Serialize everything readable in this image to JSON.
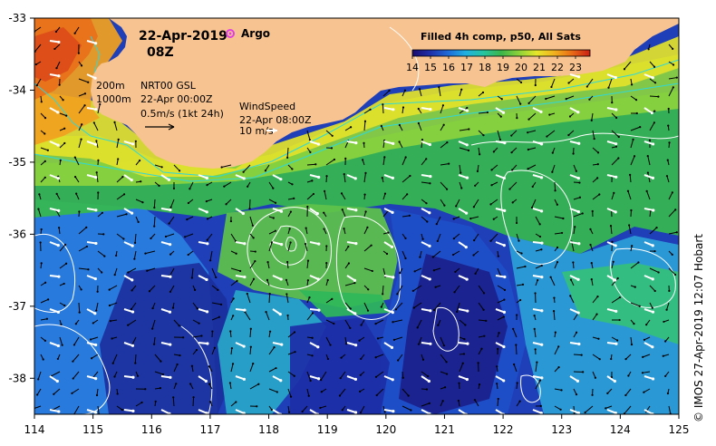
{
  "map": {
    "date": "22-Apr-2019",
    "hour": "08Z",
    "argo_label": "Argo",
    "argo_color": "#e040e0",
    "isobath_200": "200m",
    "isobath_1000": "1000m",
    "current_product": "NRT00 GSL",
    "current_time": "22-Apr 00:00Z",
    "current_scale": "0.5m/s (1kt 24h)",
    "wind_title": "WindSpeed",
    "wind_time": "22-Apr 08:00Z",
    "wind_scale": "10 m/s",
    "land_color": "#f7c391",
    "sst_min": 14,
    "sst_max": 23.8
  },
  "colorbar": {
    "title": "Filled 4h comp, p50, All Sats",
    "ticks": [
      "14",
      "15",
      "16",
      "17",
      "18",
      "19",
      "20",
      "21",
      "22",
      "23"
    ],
    "colors": [
      "#1a0a6e",
      "#1f2fa8",
      "#1e6ad8",
      "#22b0e0",
      "#27c4a0",
      "#3bb54a",
      "#8cd13a",
      "#e6e62a",
      "#f0b11e",
      "#e86a16",
      "#c81e14"
    ]
  },
  "axes": {
    "x_ticks": [
      "114",
      "115",
      "116",
      "117",
      "118",
      "119",
      "120",
      "121",
      "122",
      "123",
      "124",
      "125"
    ],
    "y_ticks": [
      "-33",
      "-34",
      "-35",
      "-36",
      "-37",
      "-38"
    ]
  },
  "credit": "© IMOS 27-Apr-2019 12:07 Hobart"
}
